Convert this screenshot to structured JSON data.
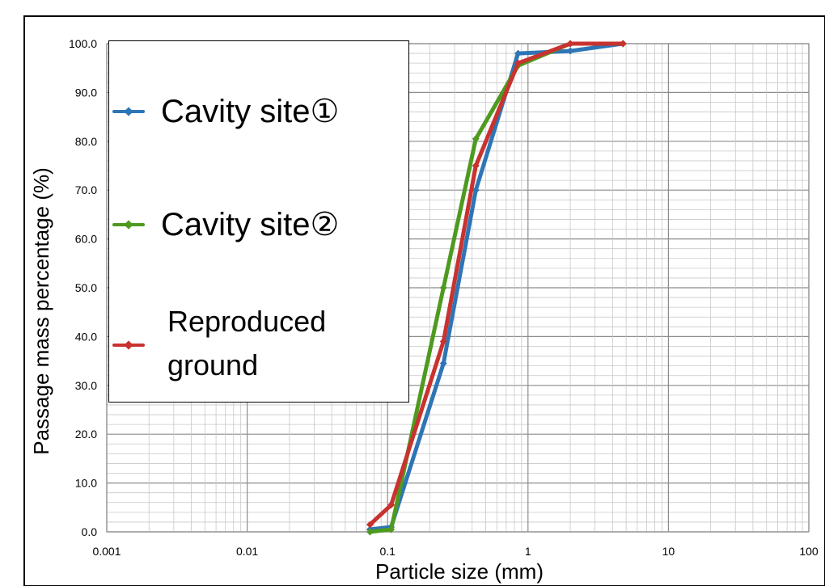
{
  "chart_data": {
    "type": "line",
    "xlabel": "Particle size (mm)",
    "ylabel": "Passage mass percentage (%)",
    "xscale": "log",
    "xlim": [
      0.001,
      100
    ],
    "ylim": [
      0,
      100
    ],
    "x_ticks": [
      "0.001",
      "0.01",
      "0.1",
      "1",
      "10",
      "100"
    ],
    "y_ticks": [
      "0.0",
      "10.0",
      "20.0",
      "30.0",
      "40.0",
      "50.0",
      "60.0",
      "70.0",
      "80.0",
      "90.0",
      "100.0"
    ],
    "grid": true,
    "legend_position": "top-left",
    "series": [
      {
        "name": "Cavity site①",
        "color": "#2e75b6",
        "x": [
          0.075,
          0.106,
          0.25,
          0.425,
          0.85,
          2.0,
          4.75
        ],
        "y": [
          0.5,
          1.0,
          34.5,
          70.0,
          98.0,
          98.5,
          100.0
        ]
      },
      {
        "name": "Cavity site②",
        "color": "#4e9a1f",
        "x": [
          0.075,
          0.106,
          0.25,
          0.425,
          0.85,
          2.0,
          4.75
        ],
        "y": [
          0.0,
          0.5,
          50.0,
          80.5,
          95.5,
          100.0,
          100.0
        ]
      },
      {
        "name": "Reproduced ground",
        "color": "#c8322f",
        "x": [
          0.075,
          0.106,
          0.25,
          0.425,
          0.85,
          2.0,
          4.75
        ],
        "y": [
          1.5,
          5.5,
          39.0,
          75.0,
          96.0,
          100.0,
          100.0
        ]
      }
    ]
  },
  "legend": {
    "labels": [
      "Cavity site①",
      "Cavity site②",
      "Reproduced\nground"
    ]
  }
}
